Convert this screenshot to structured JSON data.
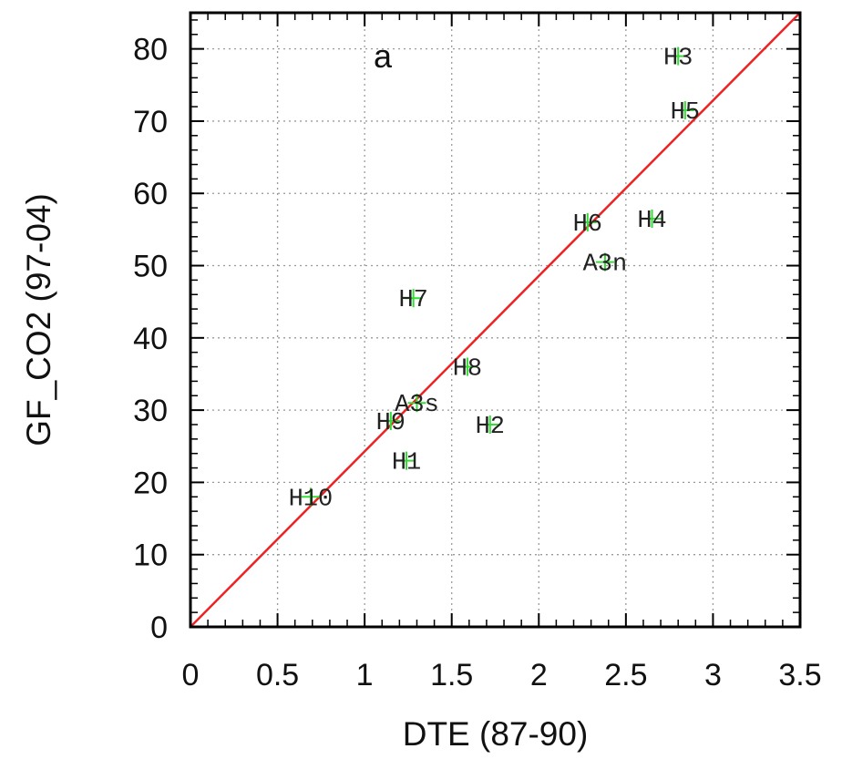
{
  "chart_data": {
    "type": "scatter",
    "title": "",
    "panel_label": "a",
    "xlabel": "DTE (87-90)",
    "ylabel": "GF_CO2 (97-04)",
    "xlim": [
      0,
      3.5
    ],
    "ylim": [
      0,
      85
    ],
    "x_ticks": [
      0,
      0.5,
      1,
      1.5,
      2,
      2.5,
      3,
      3.5
    ],
    "x_tick_labels": [
      "0",
      "0.5",
      "1",
      "1.5",
      "2",
      "2.5",
      "3",
      "3.5"
    ],
    "y_ticks": [
      0,
      10,
      20,
      30,
      40,
      50,
      60,
      70,
      80
    ],
    "y_tick_labels": [
      "0",
      "10",
      "20",
      "30",
      "40",
      "50",
      "60",
      "70",
      "80"
    ],
    "grid": true,
    "marker": "+",
    "marker_color": "#33dd33",
    "fit_line": {
      "from": [
        0,
        0
      ],
      "to": [
        3.5,
        85
      ],
      "color": "#ee2222"
    },
    "points": [
      {
        "label": "H3",
        "x": 2.8,
        "y": 79
      },
      {
        "label": "H5",
        "x": 2.84,
        "y": 71.5
      },
      {
        "label": "H6",
        "x": 2.28,
        "y": 56
      },
      {
        "label": "H4",
        "x": 2.65,
        "y": 56.5
      },
      {
        "label": "A3n",
        "x": 2.38,
        "y": 50.5
      },
      {
        "label": "H7",
        "x": 1.28,
        "y": 45.5
      },
      {
        "label": "H8",
        "x": 1.59,
        "y": 36
      },
      {
        "label": "A3s",
        "x": 1.3,
        "y": 31
      },
      {
        "label": "H9",
        "x": 1.15,
        "y": 28.5
      },
      {
        "label": "H2",
        "x": 1.72,
        "y": 28
      },
      {
        "label": "H1",
        "x": 1.24,
        "y": 23
      },
      {
        "label": "H10",
        "x": 0.69,
        "y": 18
      }
    ]
  }
}
